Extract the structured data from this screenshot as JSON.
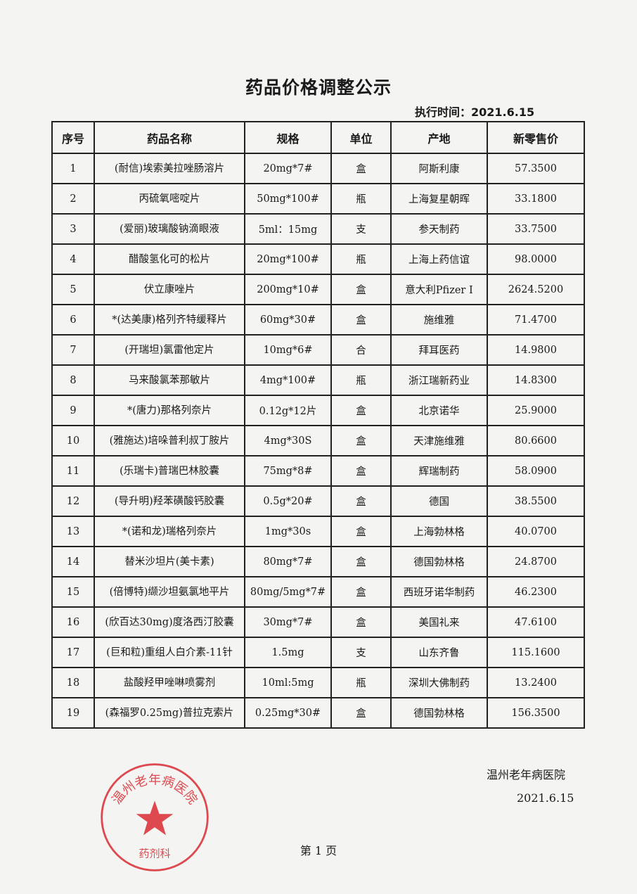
{
  "title": "药品价格调整公示",
  "execution_time": "执行时间：2021.6.15",
  "table": {
    "headers": [
      "序号",
      "药品名称",
      "规格",
      "单位",
      "产地",
      "新零售价"
    ],
    "rows": [
      [
        "1",
        "(耐信)埃索美拉唑肠溶片",
        "20mg*7#",
        "盒",
        "阿斯利康",
        "57.3500"
      ],
      [
        "2",
        "丙硫氧嘧啶片",
        "50mg*100#",
        "瓶",
        "上海复星朝晖",
        "33.1800"
      ],
      [
        "3",
        "(爱丽)玻璃酸钠滴眼液",
        "5ml：15mg",
        "支",
        "参天制药",
        "33.7500"
      ],
      [
        "4",
        "醋酸氢化可的松片",
        "20mg*100#",
        "瓶",
        "上海上药信谊",
        "98.0000"
      ],
      [
        "5",
        "伏立康唑片",
        "200mg*10#",
        "盒",
        "意大利Pfizer I",
        "2624.5200"
      ],
      [
        "6",
        "*(达美康)格列齐特缓释片",
        "60mg*30#",
        "盒",
        "施维雅",
        "71.4700"
      ],
      [
        "7",
        "(开瑞坦)氯雷他定片",
        "10mg*6#",
        "合",
        "拜耳医药",
        "14.9800"
      ],
      [
        "8",
        "马来酸氯苯那敏片",
        "4mg*100#",
        "瓶",
        "浙江瑞新药业",
        "14.8300"
      ],
      [
        "9",
        "*(唐力)那格列奈片",
        "0.12g*12片",
        "盒",
        "北京诺华",
        "25.9000"
      ],
      [
        "10",
        "(雅施达)培哚普利叔丁胺片",
        "4mg*30S",
        "盒",
        "天津施维雅",
        "80.6600"
      ],
      [
        "11",
        "(乐瑞卡)普瑞巴林胶囊",
        "75mg*8#",
        "盒",
        "辉瑞制药",
        "58.0900"
      ],
      [
        "12",
        "(导升明)羟苯磺酸钙胶囊",
        "0.5g*20#",
        "盒",
        "德国",
        "38.5500"
      ],
      [
        "13",
        "*(诺和龙)瑞格列奈片",
        "1mg*30s",
        "盒",
        "上海勃林格",
        "40.0700"
      ],
      [
        "14",
        "替米沙坦片(美卡素)",
        "80mg*7#",
        "盒",
        "德国勃林格",
        "24.8700"
      ],
      [
        "15",
        "(倍博特)缬沙坦氨氯地平片",
        "80mg/5mg*7#",
        "盒",
        "西班牙诺华制药",
        "46.2300"
      ],
      [
        "16",
        "(欣百达30mg)度洛西汀胶囊",
        "30mg*7#",
        "盒",
        "美国礼来",
        "47.6100"
      ],
      [
        "17",
        "(巨和粒)重组人白介素-11针",
        "1.5mg",
        "支",
        "山东齐鲁",
        "115.1600"
      ],
      [
        "18",
        "盐酸羟甲唑啉喷雾剂",
        "10ml:5mg",
        "瓶",
        "深圳大佛制药",
        "13.2400"
      ],
      [
        "19",
        "(森福罗0.25mg)普拉克索片",
        "0.25mg*30#",
        "盒",
        "德国勃林格",
        "156.3500"
      ]
    ]
  },
  "footer": {
    "hospital": "温州老年病医院",
    "date": "2021.6.15",
    "page": "第 1 页"
  },
  "stamp": {
    "text": "温州老年病医院",
    "dept": "药剂科",
    "color": "#d8242c"
  }
}
